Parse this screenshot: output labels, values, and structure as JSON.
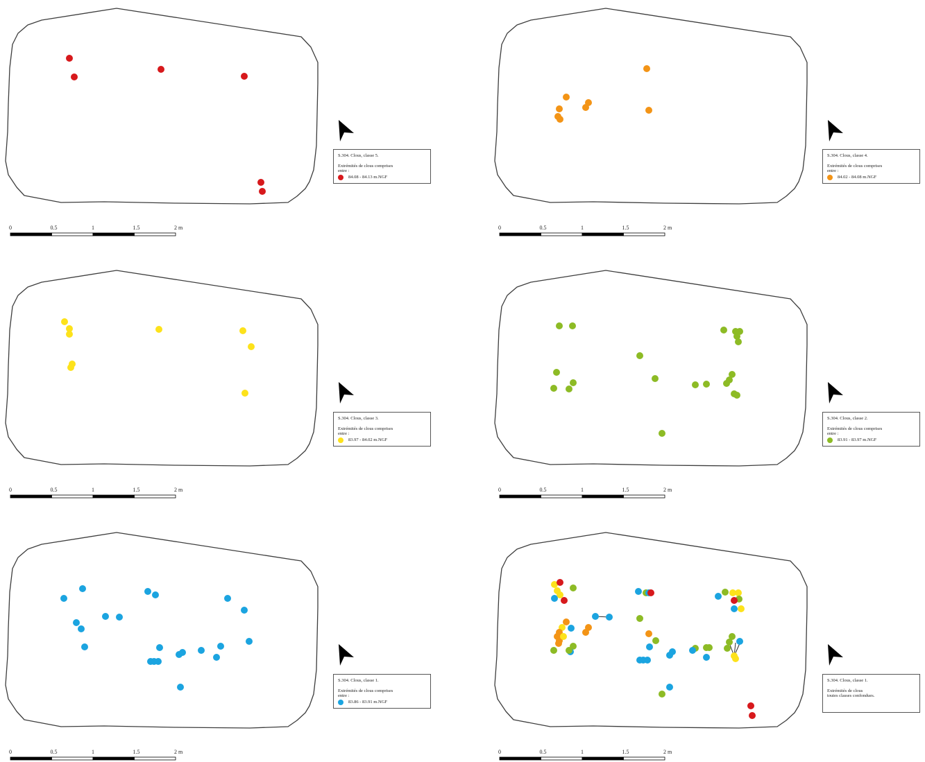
{
  "panels": [
    {
      "id": "p5",
      "legend": {
        "title": "S.304. Clous, classe 5.",
        "subtitle": "Extrémités de clous comprises\nentre :",
        "item": "84.08 - 84.13 m.NGF",
        "color": "#d7191c"
      },
      "points": [
        [
          100,
          84
        ],
        [
          107,
          111
        ],
        [
          232,
          100
        ],
        [
          352,
          110
        ],
        [
          376,
          263
        ],
        [
          378,
          276
        ]
      ]
    },
    {
      "id": "p4",
      "legend": {
        "title": "S.304. Clous, classe 4.",
        "subtitle": "Extrémités de clous comprises\nentre :",
        "item": "84.02 - 84.08 m.NGF",
        "color": "#f39416"
      },
      "points": [
        [
          932,
          99
        ],
        [
          816,
          140
        ],
        [
          806,
          157
        ],
        [
          804,
          168
        ],
        [
          807,
          172
        ],
        [
          848,
          148
        ],
        [
          844,
          155
        ],
        [
          935,
          159
        ]
      ]
    },
    {
      "id": "p3",
      "legend": {
        "title": "S.304. Clous, classe 3.",
        "subtitle": "Extrémités de clous comprises\nentre :",
        "item": "83.97 - 84.02 m.NGF",
        "color": "#fde21b"
      },
      "points": [
        [
          93,
          464
        ],
        [
          100,
          474
        ],
        [
          100,
          482
        ],
        [
          104,
          525
        ],
        [
          102,
          530
        ],
        [
          229,
          475
        ],
        [
          350,
          477
        ],
        [
          362,
          500
        ],
        [
          353,
          567
        ]
      ]
    },
    {
      "id": "p2",
      "legend": {
        "title": "S.304. Clous, classe 2.",
        "subtitle": "Extrémités de clous comprises\nentre :",
        "item": "83.91 - 83.97 m.NGF",
        "color": "#8dbb25"
      },
      "points": [
        [
          806,
          470
        ],
        [
          825,
          470
        ],
        [
          1043,
          476
        ],
        [
          1060,
          478
        ],
        [
          1066,
          478
        ],
        [
          1062,
          485
        ],
        [
          1064,
          493
        ],
        [
          922,
          513
        ],
        [
          802,
          537
        ],
        [
          826,
          552
        ],
        [
          798,
          560
        ],
        [
          820,
          561
        ],
        [
          944,
          546
        ],
        [
          1002,
          555
        ],
        [
          1018,
          554
        ],
        [
          1055,
          540
        ],
        [
          1051,
          548
        ],
        [
          1047,
          553
        ],
        [
          1058,
          568
        ],
        [
          1062,
          570
        ],
        [
          954,
          625
        ]
      ]
    },
    {
      "id": "p1",
      "legend": {
        "title": "S.304. Clous, classe 1.",
        "subtitle": "Extrémités de clous comprises\nentre :",
        "item": "83.86 - 83.91 m.NGF",
        "color": "#1ba4e0"
      },
      "points": [
        [
          119,
          849
        ],
        [
          92,
          863
        ],
        [
          213,
          853
        ],
        [
          224,
          858
        ],
        [
          328,
          863
        ],
        [
          352,
          880
        ],
        [
          152,
          889
        ],
        [
          172,
          890
        ],
        [
          110,
          898
        ],
        [
          117,
          907
        ],
        [
          359,
          925
        ],
        [
          122,
          933
        ],
        [
          230,
          934
        ],
        [
          217,
          954
        ],
        [
          222,
          954
        ],
        [
          228,
          954
        ],
        [
          258,
          944
        ],
        [
          263,
          941
        ],
        [
          290,
          938
        ],
        [
          318,
          932
        ],
        [
          312,
          948
        ],
        [
          260,
          991
        ]
      ]
    },
    {
      "id": "pall",
      "legend": {
        "title": "S.304. Clous, classe 1.",
        "subtitle": "Extrémités de clous\ntoutes classes confondues.",
        "item": "",
        "color": ""
      },
      "points": [
        [
          799,
          843,
          "#fde21b"
        ],
        [
          807,
          840,
          "#d7191c"
        ],
        [
          803,
          852,
          "#fde21b"
        ],
        [
          807,
          858,
          "#fde21b"
        ],
        [
          799,
          863,
          "#1ba4e0"
        ],
        [
          813,
          866,
          "#d7191c"
        ],
        [
          826,
          848,
          "#8dbb25"
        ],
        [
          920,
          853,
          "#1ba4e0"
        ],
        [
          931,
          855,
          "#8dbb25"
        ],
        [
          935,
          855,
          "#1ba4e0"
        ],
        [
          938,
          855,
          "#d7191c"
        ],
        [
          1035,
          860,
          "#1ba4e0"
        ],
        [
          1045,
          854,
          "#8dbb25"
        ],
        [
          1056,
          855,
          "#fde21b"
        ],
        [
          1064,
          855,
          "#fde21b"
        ],
        [
          1065,
          864,
          "#8dbb25"
        ],
        [
          1058,
          866,
          "#d7191c"
        ],
        [
          1068,
          878,
          "#fde21b"
        ],
        [
          1058,
          878,
          "#1ba4e0"
        ],
        [
          858,
          889,
          "#1ba4e0"
        ],
        [
          878,
          890,
          "#1ba4e0"
        ],
        [
          816,
          897,
          "#f39416"
        ],
        [
          823,
          906,
          "#1ba4e0"
        ],
        [
          810,
          905,
          "#fde21b"
        ],
        [
          806,
          912,
          "#f39416"
        ],
        [
          803,
          918,
          "#f39416"
        ],
        [
          806,
          924,
          "#f39416"
        ],
        [
          805,
          928,
          "#f39416"
        ],
        [
          812,
          918,
          "#fde21b"
        ],
        [
          848,
          905,
          "#f39416"
        ],
        [
          844,
          912,
          "#f39416"
        ],
        [
          922,
          892,
          "#8dbb25"
        ],
        [
          935,
          914,
          "#f39416"
        ],
        [
          945,
          924,
          "#8dbb25"
        ],
        [
          936,
          933,
          "#1ba4e0"
        ],
        [
          922,
          952,
          "#1ba4e0"
        ],
        [
          927,
          952,
          "#1ba4e0"
        ],
        [
          933,
          952,
          "#1ba4e0"
        ],
        [
          965,
          945,
          "#1ba4e0"
        ],
        [
          969,
          940,
          "#1ba4e0"
        ],
        [
          826,
          932,
          "#8dbb25"
        ],
        [
          822,
          940,
          "#1ba4e0"
        ],
        [
          798,
          938,
          "#8dbb25"
        ],
        [
          820,
          938,
          "#8dbb25"
        ],
        [
          1002,
          935,
          "#8dbb25"
        ],
        [
          998,
          938,
          "#1ba4e0"
        ],
        [
          1018,
          934,
          "#8dbb25"
        ],
        [
          1022,
          934,
          "#8dbb25"
        ],
        [
          1018,
          948,
          "#1ba4e0"
        ],
        [
          1055,
          918,
          "#8dbb25"
        ],
        [
          1051,
          926,
          "#8dbb25"
        ],
        [
          1048,
          935,
          "#8dbb25"
        ],
        [
          1066,
          925,
          "#1ba4e0"
        ],
        [
          1058,
          946,
          "#fde21b"
        ],
        [
          1060,
          950,
          "#fde21b"
        ],
        [
          965,
          991,
          "#1ba4e0"
        ],
        [
          954,
          1001,
          "#8dbb25"
        ],
        [
          1082,
          1018,
          "#d7191c"
        ],
        [
          1084,
          1032,
          "#d7191c"
        ]
      ],
      "lines": [
        [
          858,
          889,
          878,
          890
        ],
        [
          1058,
          946,
          1050,
          925
        ],
        [
          1058,
          946,
          1060,
          927
        ],
        [
          1058,
          946,
          1066,
          928
        ]
      ]
    }
  ],
  "scale": {
    "labels": [
      "0",
      "0.5",
      "1",
      "1.5",
      "2 m"
    ]
  }
}
